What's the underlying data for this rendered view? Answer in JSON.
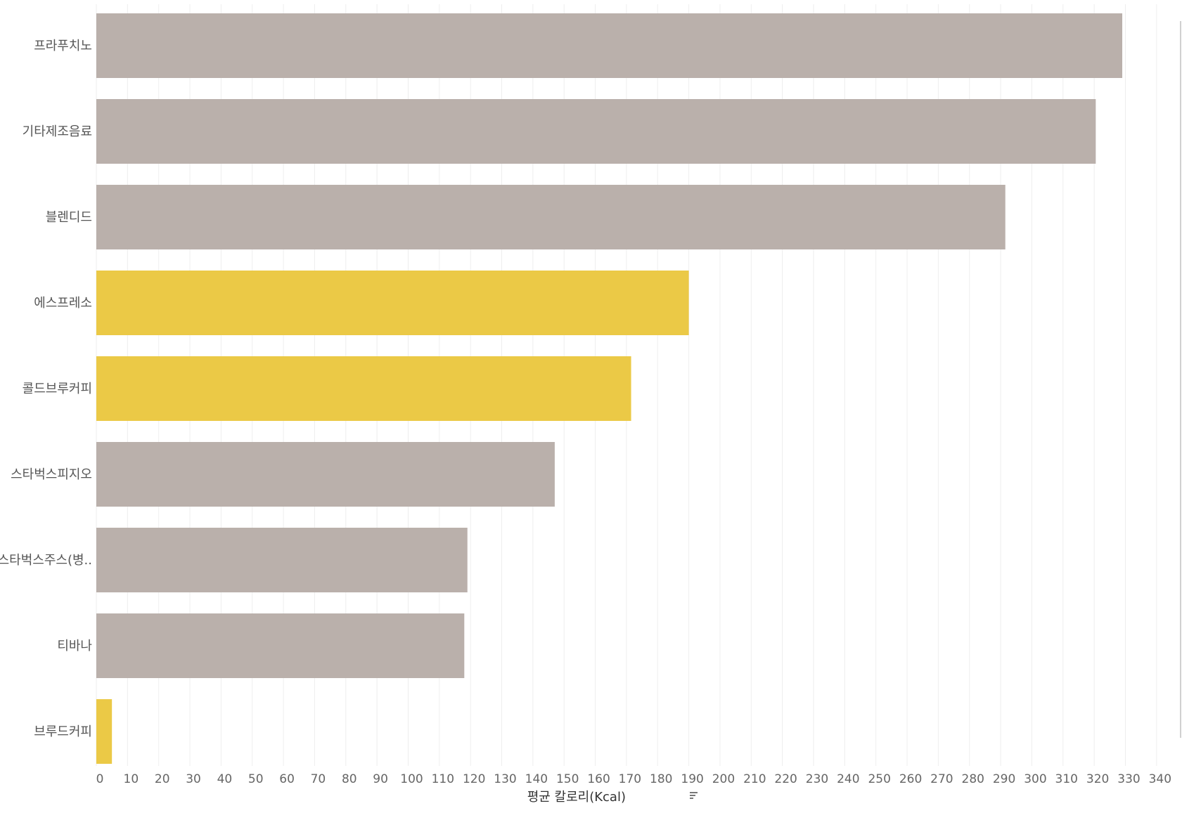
{
  "chart_data": {
    "type": "bar",
    "orientation": "horizontal",
    "xlabel": "평균 칼로리(Kcal)",
    "xlim": [
      0,
      345
    ],
    "xticks": [
      0,
      10,
      20,
      30,
      40,
      50,
      60,
      70,
      80,
      90,
      100,
      110,
      120,
      130,
      140,
      150,
      160,
      170,
      180,
      190,
      200,
      210,
      220,
      230,
      240,
      250,
      260,
      270,
      280,
      290,
      300,
      310,
      320,
      330,
      340
    ],
    "grid": true,
    "colors": {
      "highlight": "#ebc946",
      "default": "#bab0ab"
    },
    "categories": [
      "프라푸치노",
      "기타제조음료",
      "블렌디드",
      "에스프레소",
      "콜드브루커피",
      "스타벅스피지오",
      "스타벅스주스(병..",
      "티바나",
      "브루드커피"
    ],
    "values": [
      329,
      320.5,
      291.5,
      190,
      171.5,
      147,
      119,
      118,
      5
    ],
    "highlighted": [
      false,
      false,
      false,
      true,
      true,
      false,
      false,
      false,
      true
    ]
  }
}
